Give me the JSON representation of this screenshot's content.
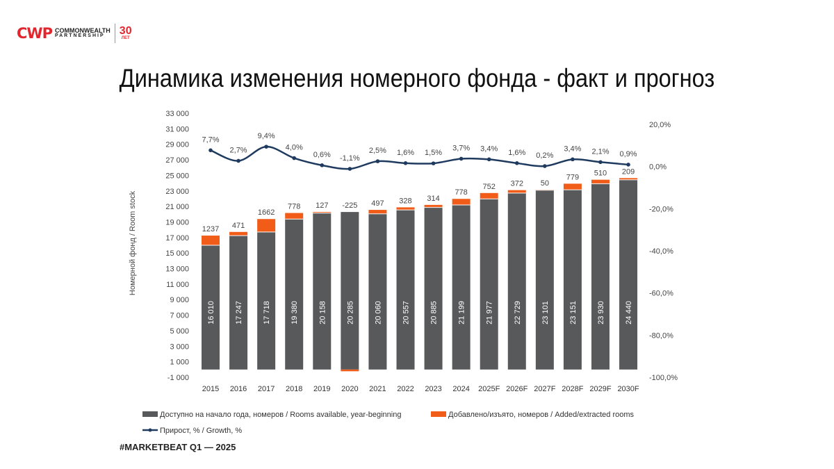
{
  "logo": {
    "mark": "CWP",
    "line1": "COMMONWEALTH",
    "line2": "PARTNERSHIP",
    "anniversary": "30",
    "anniversary_sub": "ЛЕТ"
  },
  "title": "Динамика изменения номерного фонда - факт и прогноз",
  "footer": "#MARKETBEAT Q1  —  2025",
  "colors": {
    "available": "#58595b",
    "added": "#f25c19",
    "growth": "#1f3a5f"
  },
  "chart_data": {
    "type": "bar",
    "categories": [
      "2015",
      "2016",
      "2017",
      "2018",
      "2019",
      "2020",
      "2021",
      "2022",
      "2023",
      "2024",
      "2025F",
      "2026F",
      "2027F",
      "2028F",
      "2029F",
      "2030F"
    ],
    "series": [
      {
        "name": "Доступно на начало года, номеров / Rooms available, year-beginning",
        "type": "bar",
        "values": [
          16010,
          17247,
          17718,
          19380,
          20158,
          20285,
          20060,
          20557,
          20885,
          21199,
          21977,
          22729,
          23101,
          23151,
          23930,
          24440
        ],
        "labels": [
          "16 010",
          "17 247",
          "17 718",
          "19 380",
          "20 158",
          "20 285",
          "20 060",
          "20 557",
          "20 885",
          "21 199",
          "21 977",
          "22 729",
          "23 101",
          "23 151",
          "23 930",
          "24 440"
        ]
      },
      {
        "name": "Добавлено/изъято, номеров / Added/extracted rooms",
        "type": "bar",
        "stacked": true,
        "values": [
          1237,
          471,
          1662,
          778,
          127,
          -225,
          497,
          328,
          314,
          778,
          752,
          372,
          50,
          779,
          510,
          209
        ]
      },
      {
        "name": "Прирост, % / Growth, %",
        "type": "line",
        "axis": "right",
        "values": [
          7.7,
          2.7,
          9.4,
          4.0,
          0.6,
          -1.1,
          2.5,
          1.6,
          1.5,
          3.7,
          3.4,
          1.6,
          0.2,
          3.4,
          2.1,
          0.9
        ],
        "labels": [
          "7,7%",
          "2,7%",
          "9,4%",
          "4,0%",
          "0,6%",
          "-1,1%",
          "2,5%",
          "1,6%",
          "1,5%",
          "3,7%",
          "3,4%",
          "1,6%",
          "0,2%",
          "3,4%",
          "2,1%",
          "0,9%"
        ]
      }
    ],
    "ylabel": "Номерной фонд / Room stock",
    "ylim": [
      -1000,
      33000
    ],
    "yticks": [
      "33 000",
      "31 000",
      "29 000",
      "27 000",
      "25 000",
      "23 000",
      "21 000",
      "19 000",
      "17 000",
      "15 000",
      "13 000",
      "11 000",
      "9 000",
      "7 000",
      "5 000",
      "3 000",
      "1 000",
      "-1 000"
    ],
    "y2lim": [
      -100,
      20
    ],
    "y2ticks": [
      "20,0%",
      "0,0%",
      "-20,0%",
      "-40,0%",
      "-60,0%",
      "-80,0%",
      "-100,0%"
    ],
    "legend": "bottom",
    "grid": false
  }
}
